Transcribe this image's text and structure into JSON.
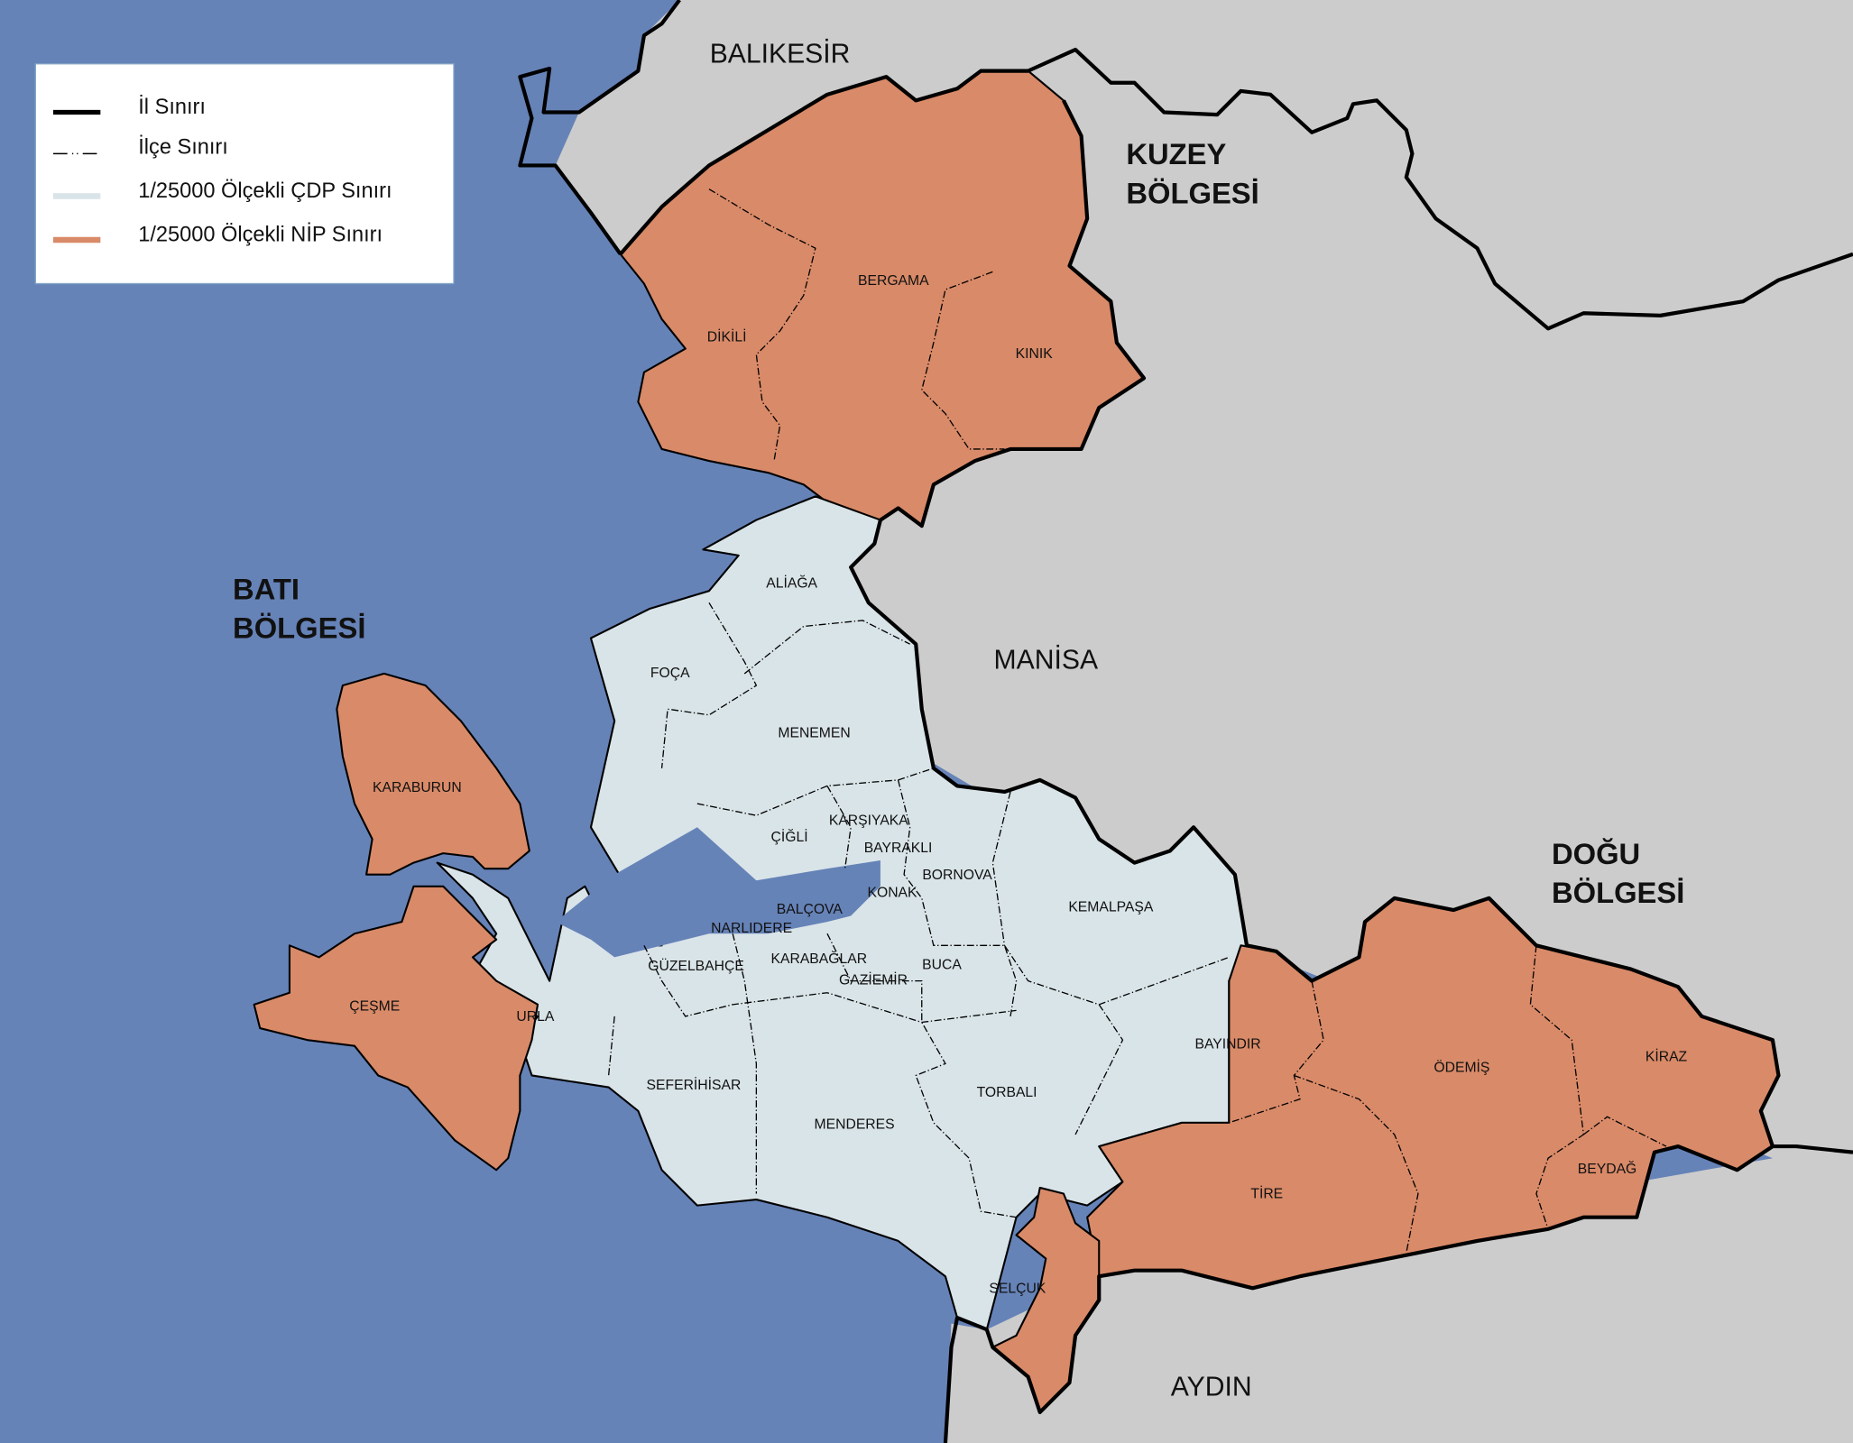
{
  "legend": {
    "items": [
      {
        "label": "İl Sınırı",
        "symbol": "thick-black-line",
        "color": "#000000"
      },
      {
        "label": "İlçe Sınırı",
        "symbol": "dash-dot-line",
        "color": "#000000"
      },
      {
        "label": "1/25000 Ölçekli ÇDP Sınırı",
        "symbol": "light-fill",
        "color": "#d9e4e8"
      },
      {
        "label": "1/25000 Ölçekli NİP Sınırı",
        "symbol": "orange-fill",
        "color": "#d98a68"
      }
    ]
  },
  "colors": {
    "sea": "#6683b8",
    "neighbor_land": "#cccccc",
    "cdp": "#d9e4e8",
    "nip": "#d98a68"
  },
  "provinces": {
    "north": "BALIKESİR",
    "east": "MANİSA",
    "south": "AYDIN"
  },
  "regions": {
    "north": [
      "KUZEY",
      "BÖLGESİ"
    ],
    "west": [
      "BATI",
      "BÖLGESİ"
    ],
    "east": [
      "DOĞU",
      "BÖLGESİ"
    ]
  },
  "districts": {
    "dikili": "DİKİLİ",
    "bergama": "BERGAMA",
    "kinik": "KINIK",
    "aliaga": "ALİAĞA",
    "foca": "FOÇA",
    "menemen": "MENEMEN",
    "karaburun": "KARABURUN",
    "cigli": "ÇİĞLİ",
    "karsiyaka": "KARŞIYAKA",
    "bayrakli": "BAYRAKLI",
    "bornova": "BORNOVA",
    "konak": "KONAK",
    "balcova": "BALÇOVA",
    "narlidere": "NARLIDERE",
    "kemalpasa": "KEMALPAŞA",
    "guzelbahce": "GÜZELBAHÇE",
    "karabaglar": "KARABAĞLAR",
    "buca": "BUCA",
    "gaziemir": "GAZİEMİR",
    "cesme": "ÇEŞME",
    "urla": "URLA",
    "bayindir": "BAYINDIR",
    "odemis": "ÖDEMİŞ",
    "kiraz": "KİRAZ",
    "seferihisar": "SEFERİHİSAR",
    "torbali": "TORBALI",
    "menderes": "MENDERES",
    "tire": "TİRE",
    "beydag": "BEYDAĞ",
    "selcuk": "SELÇUK"
  }
}
